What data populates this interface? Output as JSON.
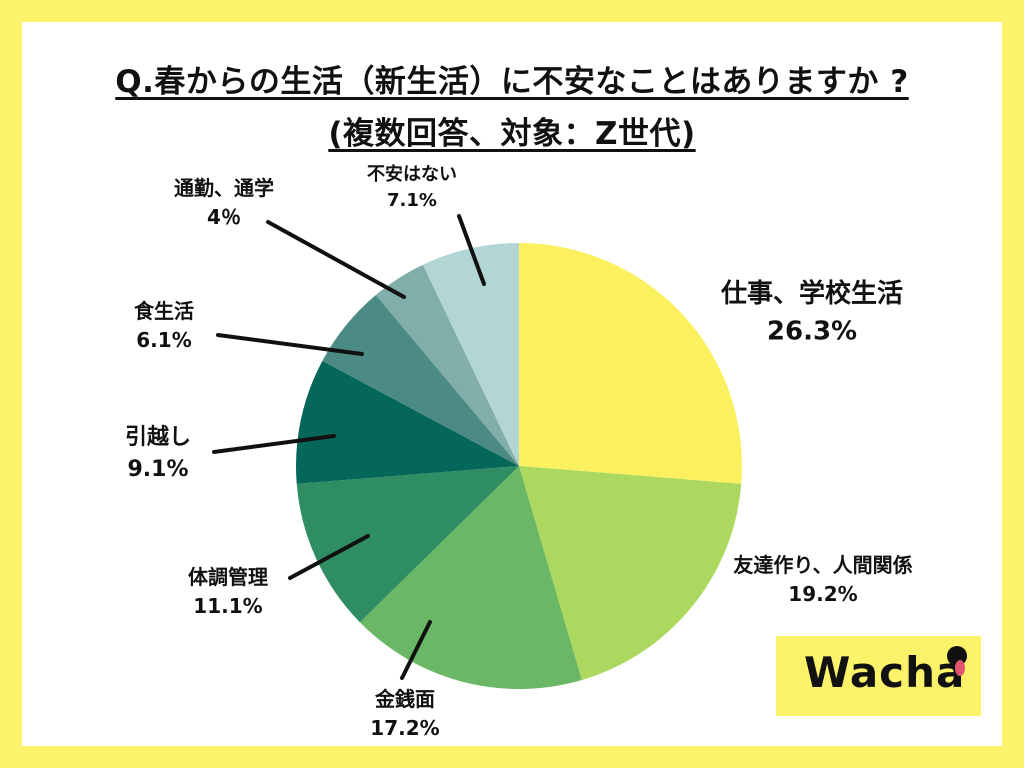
{
  "title": {
    "line1": "Q.春からの生活（新生活）に不安なことはありますか ?",
    "line2": "(複数回答、対象：Z世代)"
  },
  "chart_data": {
    "type": "pie",
    "title": "Q.春からの生活（新生活）に不安なことはありますか ?(複数回答、対象：Z世代)",
    "slices": [
      {
        "label": "仕事、学校生活",
        "value": 26.3,
        "value_label": "26.3%",
        "color": "#fbf15f"
      },
      {
        "label": "友達作り、人間関係",
        "value": 19.2,
        "value_label": "19.2%",
        "color": "#acd85f"
      },
      {
        "label": "金銭面",
        "value": 17.2,
        "value_label": "17.2%",
        "color": "#6ab765"
      },
      {
        "label": "体調管理",
        "value": 11.1,
        "value_label": "11.1%",
        "color": "#2f8d63"
      },
      {
        "label": "引越し",
        "value": 9.1,
        "value_label": "9.1%",
        "color": "#05675a"
      },
      {
        "label": "食生活",
        "value": 6.1,
        "value_label": "6.1%",
        "color": "#4b8b83"
      },
      {
        "label": "通勤、通学",
        "value": 4,
        "value_label": "4％",
        "color": "#81aeaa"
      },
      {
        "label": "不安はない",
        "value": 7.1,
        "value_label": "7.1%",
        "color": "#b2d6d5"
      }
    ]
  },
  "logo": {
    "text": "Wacha"
  },
  "colors": {
    "frame": "#fdf36a",
    "logo_bg": "#fdf36a",
    "logo_dot": "#111111",
    "logo_tongue": "#e4546f"
  }
}
